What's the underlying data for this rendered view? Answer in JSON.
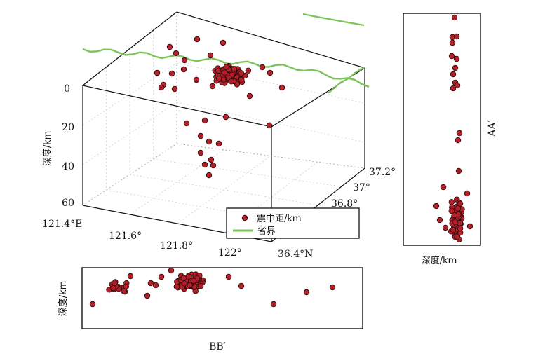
{
  "chart_data": [
    {
      "type": "scatter",
      "view": "3d",
      "z_label": "深度/km",
      "z_ticks": [
        "0",
        "20",
        "40",
        "60"
      ],
      "z_range": [
        0,
        60
      ],
      "x_ticks": [
        "121.4°E",
        "121.6°",
        "121.8°",
        "122°"
      ],
      "y_ticks": [
        "36.4°N",
        "36.8°",
        "37°",
        "37.2°"
      ],
      "legend": [
        {
          "name": "震中距/km",
          "symbol": "circle",
          "color": "#b3202a"
        },
        {
          "name": "省界",
          "symbol": "line",
          "color": "#7cc45a"
        }
      ],
      "legend_position": "bottom-right",
      "grid": true
    },
    {
      "type": "scatter",
      "view": "side-profile",
      "xlabel": "深度/km",
      "section_label": "AA′",
      "color": "#b3202a"
    },
    {
      "type": "scatter",
      "view": "side-profile",
      "xlabel": "BB′",
      "ylabel": "深度/km",
      "color": "#b3202a"
    }
  ]
}
